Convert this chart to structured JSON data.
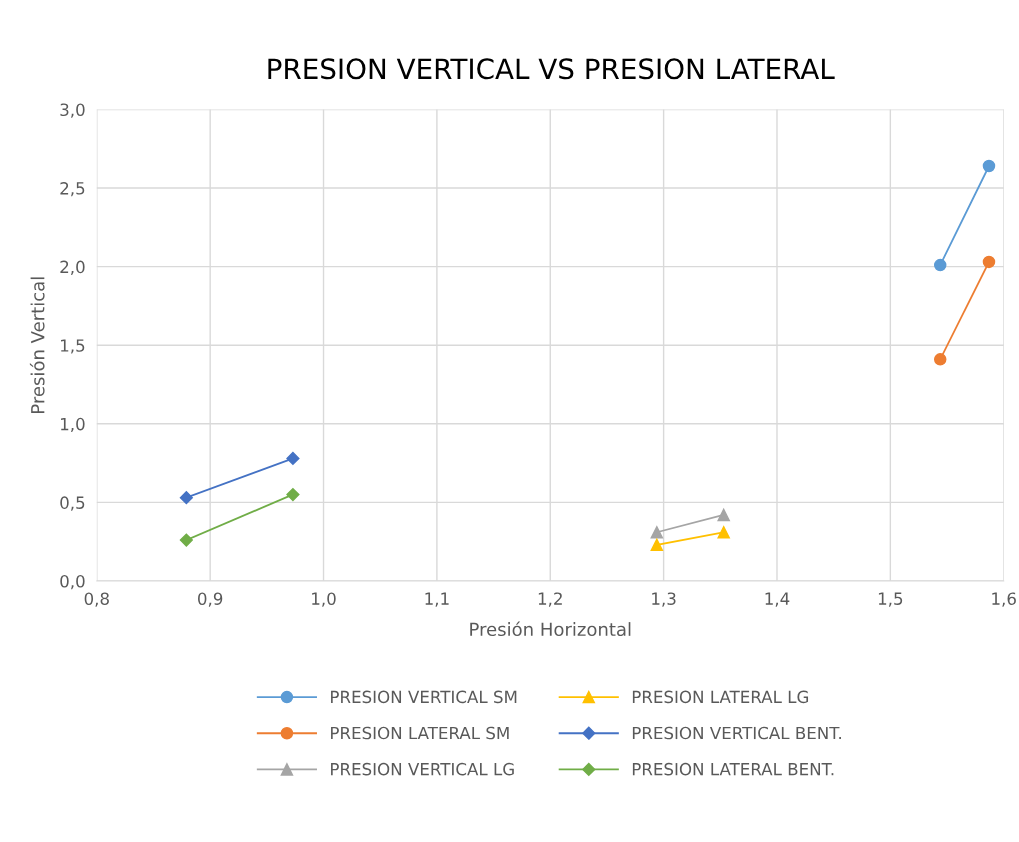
{
  "chart_data": {
    "type": "line",
    "title": "PRESION VERTICAL VS PRESION LATERAL",
    "xlabel": "Presión Horizontal",
    "ylabel": "Presión Vertical",
    "series": [
      {
        "name": "PRESION VERTICAL SM",
        "color": "#5b9bd5",
        "marker": "circle",
        "x": [
          1.544,
          1.587
        ],
        "values": [
          2.01,
          2.64
        ]
      },
      {
        "name": "PRESION LATERAL SM",
        "color": "#ed7d31",
        "marker": "circle",
        "x": [
          1.544,
          1.587
        ],
        "values": [
          1.41,
          2.03
        ]
      },
      {
        "name": "PRESION VERTICAL LG",
        "color": "#a5a5a5",
        "marker": "triangle",
        "x": [
          1.294,
          1.353
        ],
        "values": [
          0.31,
          0.42
        ]
      },
      {
        "name": "PRESION LATERAL LG",
        "color": "#ffc000",
        "marker": "triangle",
        "x": [
          1.294,
          1.353
        ],
        "values": [
          0.23,
          0.31
        ]
      },
      {
        "name": "PRESION VERTICAL BENT.",
        "color": "#4472c4",
        "marker": "diamond",
        "x": [
          0.879,
          0.973
        ],
        "values": [
          0.53,
          0.78
        ]
      },
      {
        "name": "PRESION LATERAL BENT.",
        "color": "#70ad47",
        "marker": "diamond",
        "x": [
          0.879,
          0.973
        ],
        "values": [
          0.26,
          0.55
        ]
      }
    ],
    "xlim": [
      0.8,
      1.6
    ],
    "ylim": [
      0.0,
      3.0
    ],
    "xticks": [
      {
        "value": 0.8,
        "label": "0,8"
      },
      {
        "value": 0.9,
        "label": "0,9"
      },
      {
        "value": 1.0,
        "label": "1,0"
      },
      {
        "value": 1.1,
        "label": "1,1"
      },
      {
        "value": 1.2,
        "label": "1,2"
      },
      {
        "value": 1.3,
        "label": "1,3"
      },
      {
        "value": 1.4,
        "label": "1,4"
      },
      {
        "value": 1.5,
        "label": "1,5"
      },
      {
        "value": 1.6,
        "label": "1,6"
      }
    ],
    "yticks": [
      {
        "value": 0.0,
        "label": "0,0"
      },
      {
        "value": 0.5,
        "label": "0,5"
      },
      {
        "value": 1.0,
        "label": "1,0"
      },
      {
        "value": 1.5,
        "label": "1,5"
      },
      {
        "value": 2.0,
        "label": "2,0"
      },
      {
        "value": 2.5,
        "label": "2,5"
      },
      {
        "value": 3.0,
        "label": "3,0"
      }
    ],
    "grid": true,
    "legend": "bottom",
    "line_style": "solid"
  }
}
